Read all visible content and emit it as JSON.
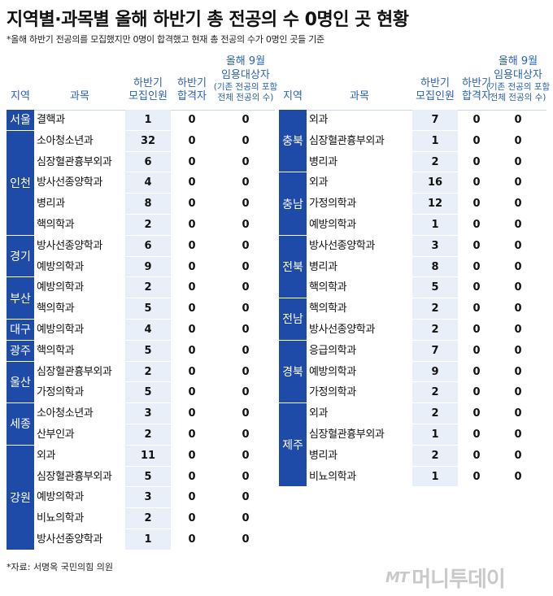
{
  "title": "지역별·과목별 올해 하반기 총 전공의 수 0명인 곳 현황",
  "subtitle": "*올해 하반기 전공의를 모집했지만 0명이 합격했고 현재 총 전공의 수가 0명인 곳들 기준",
  "headers": {
    "region": "지역",
    "subject": "과목",
    "recruit_l1": "하반기",
    "recruit_l2": "모집인원",
    "pass_l1": "하반기",
    "pass_l2": "합격자",
    "sept_l1": "올해 9월",
    "sept_l2": "임용대상자",
    "sept_l3": "(기존 전공의 포함",
    "sept_l4": "전체 전공의 수)"
  },
  "left_groups": [
    {
      "region": "서울",
      "rows": [
        {
          "subject": "결핵과",
          "recruit": "1",
          "pass": "0",
          "total": "0"
        }
      ]
    },
    {
      "region": "인천",
      "rows": [
        {
          "subject": "소아청소년과",
          "recruit": "32",
          "pass": "0",
          "total": "0"
        },
        {
          "subject": "심장혈관흉부외과",
          "recruit": "6",
          "pass": "0",
          "total": "0"
        },
        {
          "subject": "방사선종양학과",
          "recruit": "4",
          "pass": "0",
          "total": "0"
        },
        {
          "subject": "병리과",
          "recruit": "8",
          "pass": "0",
          "total": "0"
        },
        {
          "subject": "핵의학과",
          "recruit": "2",
          "pass": "0",
          "total": "0"
        }
      ]
    },
    {
      "region": "경기",
      "rows": [
        {
          "subject": "방사선종양학과",
          "recruit": "6",
          "pass": "0",
          "total": "0"
        },
        {
          "subject": "예방의학과",
          "recruit": "9",
          "pass": "0",
          "total": "0"
        }
      ]
    },
    {
      "region": "부산",
      "rows": [
        {
          "subject": "예방의학과",
          "recruit": "2",
          "pass": "0",
          "total": "0"
        },
        {
          "subject": "핵의학과",
          "recruit": "5",
          "pass": "0",
          "total": "0"
        }
      ]
    },
    {
      "region": "대구",
      "rows": [
        {
          "subject": "예방의학과",
          "recruit": "4",
          "pass": "0",
          "total": "0"
        }
      ]
    },
    {
      "region": "광주",
      "rows": [
        {
          "subject": "핵의학과",
          "recruit": "5",
          "pass": "0",
          "total": "0"
        }
      ]
    },
    {
      "region": "울산",
      "rows": [
        {
          "subject": "심장혈관흉부외과",
          "recruit": "2",
          "pass": "0",
          "total": "0"
        },
        {
          "subject": "가정의학과",
          "recruit": "5",
          "pass": "0",
          "total": "0"
        }
      ]
    },
    {
      "region": "세종",
      "rows": [
        {
          "subject": "소아청소년과",
          "recruit": "3",
          "pass": "0",
          "total": "0"
        },
        {
          "subject": "산부인과",
          "recruit": "2",
          "pass": "0",
          "total": "0"
        }
      ]
    },
    {
      "region": "강원",
      "rows": [
        {
          "subject": "외과",
          "recruit": "11",
          "pass": "0",
          "total": "0"
        },
        {
          "subject": "심장혈관흉부외과",
          "recruit": "5",
          "pass": "0",
          "total": "0"
        },
        {
          "subject": "예방의학과",
          "recruit": "3",
          "pass": "0",
          "total": "0"
        },
        {
          "subject": "비뇨의학과",
          "recruit": "2",
          "pass": "0",
          "total": "0"
        },
        {
          "subject": "방사선종양학과",
          "recruit": "1",
          "pass": "0",
          "total": "0"
        }
      ]
    }
  ],
  "right_groups": [
    {
      "region": "충북",
      "rows": [
        {
          "subject": "외과",
          "recruit": "7",
          "pass": "0",
          "total": "0"
        },
        {
          "subject": "심장혈관흉부외과",
          "recruit": "1",
          "pass": "0",
          "total": "0"
        },
        {
          "subject": "병리과",
          "recruit": "2",
          "pass": "0",
          "total": "0"
        }
      ]
    },
    {
      "region": "충남",
      "rows": [
        {
          "subject": "외과",
          "recruit": "16",
          "pass": "0",
          "total": "0"
        },
        {
          "subject": "가정의학과",
          "recruit": "12",
          "pass": "0",
          "total": "0"
        },
        {
          "subject": "예방의학과",
          "recruit": "1",
          "pass": "0",
          "total": "0"
        }
      ]
    },
    {
      "region": "전북",
      "rows": [
        {
          "subject": "방사선종양학과",
          "recruit": "3",
          "pass": "0",
          "total": "0"
        },
        {
          "subject": "병리과",
          "recruit": "8",
          "pass": "0",
          "total": "0"
        },
        {
          "subject": "핵의학과",
          "recruit": "5",
          "pass": "0",
          "total": "0"
        }
      ]
    },
    {
      "region": "전남",
      "rows": [
        {
          "subject": "핵의학과",
          "recruit": "2",
          "pass": "0",
          "total": "0"
        },
        {
          "subject": "방사선종양학과",
          "recruit": "2",
          "pass": "0",
          "total": "0"
        }
      ]
    },
    {
      "region": "경북",
      "rows": [
        {
          "subject": "응급의학과",
          "recruit": "7",
          "pass": "0",
          "total": "0"
        },
        {
          "subject": "예방의학과",
          "recruit": "9",
          "pass": "0",
          "total": "0"
        },
        {
          "subject": "가정의학과",
          "recruit": "2",
          "pass": "0",
          "total": "0"
        }
      ]
    },
    {
      "region": "제주",
      "rows": [
        {
          "subject": "외과",
          "recruit": "2",
          "pass": "0",
          "total": "0"
        },
        {
          "subject": "심장혈관흉부외과",
          "recruit": "1",
          "pass": "0",
          "total": "0"
        },
        {
          "subject": "병리과",
          "recruit": "2",
          "pass": "0",
          "total": "0"
        },
        {
          "subject": "비뇨의학과",
          "recruit": "1",
          "pass": "0",
          "total": "0"
        }
      ]
    }
  ],
  "source": "*자료: 서명옥 국민의힘 의원",
  "logo": {
    "mark": "MT",
    "name": "머니투데이"
  },
  "colors": {
    "region_bg": "#1e4aa8",
    "recruit_bg": "#e9eff8",
    "header_text": "#2a62b3"
  }
}
